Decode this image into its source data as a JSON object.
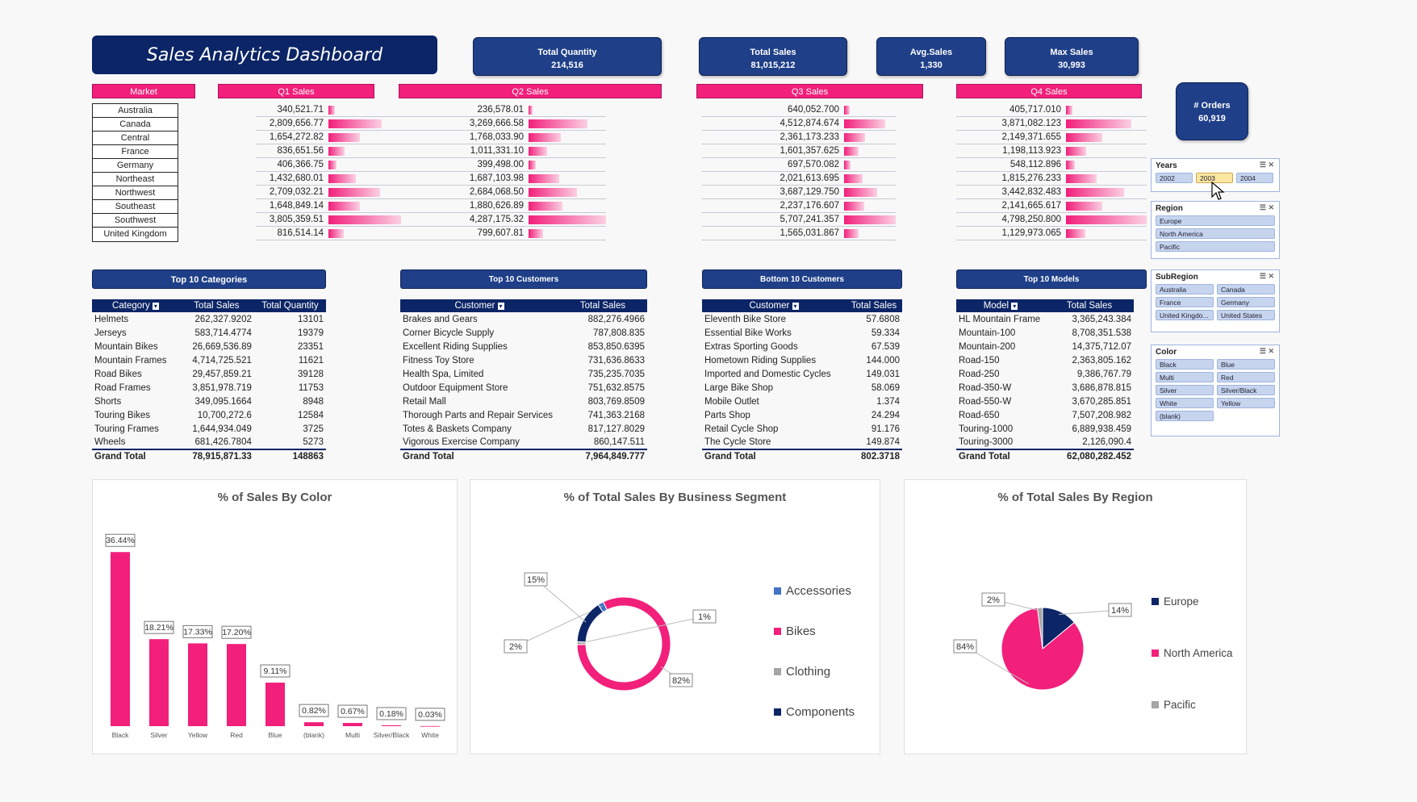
{
  "title": "Sales Analytics Dashboard",
  "kpis": [
    {
      "label": "Total Quantity",
      "value": "214,516"
    },
    {
      "label": "Total Sales",
      "value": "81,015,212"
    },
    {
      "label": "Avg.Sales",
      "value": "1,330"
    },
    {
      "label": "Max Sales",
      "value": "30,993"
    },
    {
      "label": "# Orders",
      "value": "60,919"
    }
  ],
  "market": {
    "header": "Market",
    "items": [
      "Australia",
      "Canada",
      "Central",
      "France",
      "Germany",
      "Northeast",
      "Northwest",
      "Southeast",
      "Southwest",
      "United Kingdom"
    ]
  },
  "quarters": [
    {
      "header": "Q1 Sales",
      "values": [
        "340,521.71",
        "2,809,656.77",
        "1,654,272.82",
        "836,651.56",
        "406,366.75",
        "1,432,680.01",
        "2,709,032.21",
        "1,648,849.14",
        "3,805,359.51",
        "816,514.14"
      ],
      "raw": [
        340521.71,
        2809656.77,
        1654272.82,
        836651.56,
        406366.75,
        1432680.01,
        2709032.21,
        1648849.14,
        3805359.51,
        816514.14
      ]
    },
    {
      "header": "Q2 Sales",
      "values": [
        "236,578.01",
        "3,269,666.58",
        "1,768,033.90",
        "1,011,331.10",
        "399,498.00",
        "1,687,103.98",
        "2,684,068.50",
        "1,880,626.89",
        "4,287,175.32",
        "799,607.81"
      ],
      "raw": [
        236578.01,
        3269666.58,
        1768033.9,
        1011331.1,
        399498.0,
        1687103.98,
        2684068.5,
        1880626.89,
        4287175.32,
        799607.81
      ]
    },
    {
      "header": "Q3 Sales",
      "values": [
        "640,052.700",
        "4,512,874.674",
        "2,361,173.233",
        "1,601,357.625",
        "697,570.082",
        "2,021,613.695",
        "3,687,129.750",
        "2,237,176.607",
        "5,707,241.357",
        "1,565,031.867"
      ],
      "raw": [
        640052.7,
        4512874.674,
        2361173.233,
        1601357.625,
        697570.082,
        2021613.695,
        3687129.75,
        2237176.607,
        5707241.357,
        1565031.867
      ]
    },
    {
      "header": "Q4 Sales",
      "values": [
        "405,717.010",
        "3,871,082.123",
        "2,149,371.655",
        "1,198,113.923",
        "548,112.896",
        "1,815,276.233",
        "3,442,832.483",
        "2,141,665.617",
        "4,798,250.800",
        "1,129,973.065"
      ],
      "raw": [
        405717.01,
        3871082.123,
        2149371.655,
        1198113.923,
        548112.896,
        1815276.233,
        3442832.483,
        2141665.617,
        4798250.8,
        1129973.065
      ]
    }
  ],
  "top_categories": {
    "title": "Top 10 Categories",
    "columns": [
      "Category",
      "Total Sales",
      "Total Quantity"
    ],
    "rows": [
      [
        "Helmets",
        "262,327.9202",
        "13101"
      ],
      [
        "Jerseys",
        "583,714.4774",
        "19379"
      ],
      [
        "Mountain Bikes",
        "26,669,536.89",
        "23351"
      ],
      [
        "Mountain Frames",
        "4,714,725.521",
        "11621"
      ],
      [
        "Road Bikes",
        "29,457,859.21",
        "39128"
      ],
      [
        "Road Frames",
        "3,851,978.719",
        "11753"
      ],
      [
        "Shorts",
        "349,095.1664",
        "8948"
      ],
      [
        "Touring Bikes",
        "10,700,272.6",
        "12584"
      ],
      [
        "Touring Frames",
        "1,644,934.049",
        "3725"
      ],
      [
        "Wheels",
        "681,426.7804",
        "5273"
      ]
    ],
    "total": [
      "Grand Total",
      "78,915,871.33",
      "148863"
    ]
  },
  "top_customers": {
    "title": "Top 10 Customers",
    "columns": [
      "Customer",
      "Total Sales"
    ],
    "rows": [
      [
        "Brakes and Gears",
        "882,276.4966"
      ],
      [
        "Corner Bicycle Supply",
        "787,808.835"
      ],
      [
        "Excellent Riding Supplies",
        "853,850.6395"
      ],
      [
        "Fitness Toy Store",
        "731,636.8633"
      ],
      [
        "Health Spa, Limited",
        "735,235.7035"
      ],
      [
        "Outdoor Equipment Store",
        "751,632.8575"
      ],
      [
        "Retail Mall",
        "803,769.8509"
      ],
      [
        "Thorough Parts and Repair Services",
        "741,363.2168"
      ],
      [
        "Totes & Baskets Company",
        "817,127.8029"
      ],
      [
        "Vigorous Exercise Company",
        "860,147.511"
      ]
    ],
    "total": [
      "Grand Total",
      "7,964,849.777"
    ]
  },
  "bottom_customers": {
    "title": "Bottom 10 Customers",
    "columns": [
      "Customer",
      "Total Sales"
    ],
    "rows": [
      [
        "Eleventh Bike Store",
        "57.6808"
      ],
      [
        "Essential Bike Works",
        "59.334"
      ],
      [
        "Extras Sporting Goods",
        "67.539"
      ],
      [
        "Hometown Riding Supplies",
        "144.000"
      ],
      [
        "Imported and Domestic Cycles",
        "149.031"
      ],
      [
        "Large Bike Shop",
        "58.069"
      ],
      [
        "Mobile Outlet",
        "1.374"
      ],
      [
        "Parts Shop",
        "24.294"
      ],
      [
        "Retail Cycle Shop",
        "91.176"
      ],
      [
        "The Cycle Store",
        "149.874"
      ]
    ],
    "total": [
      "Grand Total",
      "802.3718"
    ]
  },
  "top_models": {
    "title": "Top 10 Models",
    "columns": [
      "Model",
      "Total Sales"
    ],
    "rows": [
      [
        "HL Mountain Frame",
        "3,365,243.384"
      ],
      [
        "Mountain-100",
        "8,708,351.538"
      ],
      [
        "Mountain-200",
        "14,375,712.07"
      ],
      [
        "Road-150",
        "2,363,805.162"
      ],
      [
        "Road-250",
        "9,386,767.79"
      ],
      [
        "Road-350-W",
        "3,686,878.815"
      ],
      [
        "Road-550-W",
        "3,670,285.851"
      ],
      [
        "Road-650",
        "7,507,208.982"
      ],
      [
        "Touring-1000",
        "6,889,938.459"
      ],
      [
        "Touring-3000",
        "2,126,090.4"
      ]
    ],
    "total": [
      "Grand Total",
      "62,080,282.452"
    ]
  },
  "slicers": {
    "years": {
      "title": "Years",
      "items": [
        "2002",
        "2003",
        "2004"
      ],
      "selected": "2003"
    },
    "region": {
      "title": "Region",
      "items": [
        "Europe",
        "North America",
        "Pacific"
      ]
    },
    "subregion": {
      "title": "SubRegion",
      "items": [
        "Australia",
        "Canada",
        "France",
        "Germany",
        "United Kingdo...",
        "United States"
      ]
    },
    "color": {
      "title": "Color",
      "items": [
        "Black",
        "Blue",
        "Multi",
        "Red",
        "Silver",
        "Silver/Black",
        "White",
        "Yellow",
        "(blank)"
      ]
    }
  },
  "colors": {
    "navy": "#0c2566",
    "pink": "#f21f7b",
    "grey": "#a5a5a5",
    "blue": "#4472c4"
  },
  "chart_data": [
    {
      "type": "bar",
      "title": "% of Sales By Color",
      "categories": [
        "Black",
        "Silver",
        "Yellow",
        "Red",
        "Blue",
        "(blank)",
        "Multi",
        "Silver/Black",
        "White"
      ],
      "values": [
        36.44,
        18.21,
        17.33,
        17.2,
        9.11,
        0.82,
        0.67,
        0.18,
        0.03
      ],
      "labels": [
        "36.44%",
        "18.21%",
        "17.33%",
        "17.20%",
        "9.11%",
        "0.82%",
        "0.67%",
        "0.18%",
        "0.03%"
      ],
      "ylim": [
        0,
        38
      ],
      "grid": false
    },
    {
      "type": "pie",
      "title": "% of Total Sales By Business Segment",
      "donut": true,
      "categories": [
        "Accessories",
        "Bikes",
        "Clothing",
        "Components"
      ],
      "values": [
        2,
        82,
        1,
        15
      ],
      "labels": [
        "2%",
        "82%",
        "1%",
        "15%"
      ],
      "colors": [
        "#4472c4",
        "#f21f7b",
        "#a5a5a5",
        "#0c2566"
      ],
      "legend": "right"
    },
    {
      "type": "pie",
      "title": "% of Total Sales By Region",
      "categories": [
        "Europe",
        "North America",
        "Pacific"
      ],
      "values": [
        14,
        84,
        2
      ],
      "labels": [
        "14%",
        "84%",
        "2%"
      ],
      "colors": [
        "#0c2566",
        "#f21f7b",
        "#a5a5a5"
      ],
      "legend": "right"
    }
  ]
}
